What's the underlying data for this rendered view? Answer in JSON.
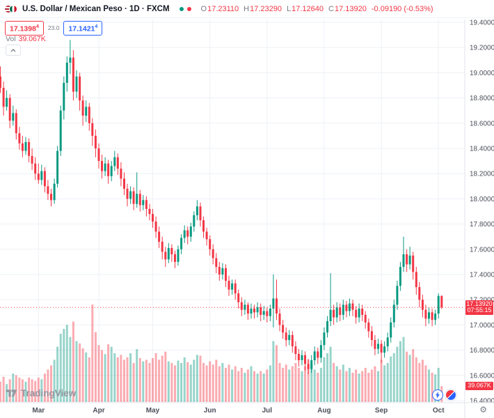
{
  "header": {
    "symbol_title": "U.S. Dollar / Mexican Peso · 1D · FXCM",
    "ohlc": {
      "o_label": "O",
      "o_value": "17.23110",
      "h_label": "H",
      "h_value": "17.23290",
      "l_label": "L",
      "l_value": "17.12640",
      "c_label": "C",
      "c_value": "17.13920",
      "change": "-0.09190 (-0.53%)"
    }
  },
  "legend": {
    "bid_main": "17.1398",
    "bid_sup": "4",
    "spread": "23.0",
    "ask_main": "17.1421",
    "ask_sup": "4",
    "vol_label": "Vol",
    "vol_value": "39.067K"
  },
  "price_label": {
    "price": "17.13920",
    "countdown": "07:55:15"
  },
  "volume_label": "39.067K",
  "watermark": "TradingView",
  "axis_gear_icon": "⚙",
  "colors": {
    "up": "#089981",
    "down": "#f23645",
    "accent_blue": "#2962ff",
    "grid": "#eef1f6",
    "axis_text": "#4a4e59"
  },
  "chart_data": {
    "type": "candlestick+volume",
    "title": "U.S. Dollar / Mexican Peso",
    "timeframe": "1D",
    "exchange": "FXCM",
    "legend_values": {
      "open": 17.2311,
      "high": 17.2329,
      "low": 17.1264,
      "close": 17.1392,
      "change": -0.0919,
      "change_pct": -0.53,
      "bid": 17.13984,
      "ask": 17.14214,
      "spread": 23.0,
      "volume": "39.067K"
    },
    "y_axis": {
      "min": 16.4,
      "max": 19.4,
      "tick_step": 0.2,
      "format_decimals": 5
    },
    "x_axis_months": [
      {
        "label": "Mar",
        "i": 12
      },
      {
        "label": "Apr",
        "i": 31
      },
      {
        "label": "May",
        "i": 48
      },
      {
        "label": "Jun",
        "i": 66
      },
      {
        "label": "Jul",
        "i": 84
      },
      {
        "label": "Aug",
        "i": 102
      },
      {
        "label": "Sep",
        "i": 120
      },
      {
        "label": "Oct",
        "i": 138
      }
    ],
    "last_price": 17.1392,
    "grid": true,
    "candles_format": [
      "open",
      "high",
      "low",
      "close",
      "volume_k"
    ],
    "candles": [
      [
        18.97,
        19.05,
        18.84,
        18.88,
        50
      ],
      [
        18.88,
        18.93,
        18.66,
        18.73,
        62
      ],
      [
        18.73,
        18.86,
        18.7,
        18.8,
        44
      ],
      [
        18.8,
        18.83,
        18.56,
        18.62,
        56
      ],
      [
        18.62,
        18.74,
        18.58,
        18.68,
        70
      ],
      [
        18.68,
        18.71,
        18.47,
        18.52,
        66
      ],
      [
        18.52,
        18.57,
        18.39,
        18.44,
        60
      ],
      [
        18.44,
        18.5,
        18.33,
        18.38,
        56
      ],
      [
        18.38,
        18.49,
        18.35,
        18.45,
        50
      ],
      [
        18.45,
        18.48,
        18.29,
        18.34,
        60
      ],
      [
        18.34,
        18.4,
        18.23,
        18.28,
        56
      ],
      [
        18.28,
        18.33,
        18.15,
        18.2,
        52
      ],
      [
        18.2,
        18.28,
        18.12,
        18.15,
        60
      ],
      [
        18.15,
        18.27,
        18.11,
        18.22,
        56
      ],
      [
        18.22,
        18.25,
        18.05,
        18.1,
        70
      ],
      [
        18.1,
        18.15,
        17.99,
        18.04,
        80
      ],
      [
        18.04,
        18.08,
        17.94,
        17.99,
        90
      ],
      [
        17.99,
        18.16,
        17.96,
        18.12,
        104
      ],
      [
        18.12,
        18.42,
        18.09,
        18.38,
        136
      ],
      [
        18.38,
        18.74,
        18.34,
        18.7,
        168
      ],
      [
        18.7,
        18.97,
        18.63,
        18.92,
        180
      ],
      [
        18.92,
        19.13,
        18.85,
        19.08,
        190
      ],
      [
        19.08,
        19.26,
        18.99,
        19.12,
        160
      ],
      [
        19.12,
        19.18,
        18.78,
        18.85,
        198
      ],
      [
        18.85,
        19.02,
        18.8,
        18.97,
        150
      ],
      [
        18.97,
        19.0,
        18.7,
        18.78,
        144
      ],
      [
        18.78,
        18.82,
        18.58,
        18.66,
        132
      ],
      [
        18.66,
        18.78,
        18.61,
        18.73,
        122
      ],
      [
        18.73,
        18.76,
        18.54,
        18.6,
        110
      ],
      [
        18.6,
        18.64,
        18.42,
        18.5,
        240
      ],
      [
        18.5,
        18.55,
        18.33,
        18.4,
        172
      ],
      [
        18.4,
        18.44,
        18.24,
        18.3,
        140
      ],
      [
        18.3,
        18.35,
        18.16,
        18.22,
        128
      ],
      [
        18.22,
        18.33,
        18.18,
        18.28,
        118
      ],
      [
        18.28,
        18.31,
        18.12,
        18.18,
        142
      ],
      [
        18.18,
        18.3,
        18.14,
        18.26,
        136
      ],
      [
        18.26,
        18.38,
        18.22,
        18.33,
        120
      ],
      [
        18.33,
        18.36,
        18.19,
        18.24,
        110
      ],
      [
        18.24,
        18.29,
        18.1,
        18.16,
        116
      ],
      [
        18.16,
        18.21,
        18.03,
        18.08,
        104
      ],
      [
        18.08,
        18.12,
        17.94,
        18.0,
        110
      ],
      [
        18.0,
        18.1,
        17.96,
        18.06,
        120
      ],
      [
        18.06,
        18.09,
        17.91,
        17.96,
        96
      ],
      [
        17.96,
        18.21,
        17.93,
        18.04,
        130
      ],
      [
        18.04,
        18.07,
        17.9,
        17.95,
        108
      ],
      [
        17.95,
        18.03,
        17.91,
        17.99,
        100
      ],
      [
        17.99,
        18.02,
        17.86,
        17.92,
        104
      ],
      [
        17.92,
        17.96,
        17.83,
        17.88,
        96
      ],
      [
        17.88,
        17.92,
        17.77,
        17.82,
        108
      ],
      [
        17.82,
        17.86,
        17.69,
        17.74,
        120
      ],
      [
        17.74,
        17.78,
        17.61,
        17.66,
        104
      ],
      [
        17.66,
        17.7,
        17.52,
        17.58,
        114
      ],
      [
        17.58,
        17.62,
        17.46,
        17.52,
        124
      ],
      [
        17.52,
        17.65,
        17.49,
        17.61,
        100
      ],
      [
        17.61,
        17.64,
        17.5,
        17.56,
        96
      ],
      [
        17.56,
        17.59,
        17.45,
        17.5,
        90
      ],
      [
        17.5,
        17.63,
        17.47,
        17.6,
        102
      ],
      [
        17.6,
        17.72,
        17.56,
        17.69,
        96
      ],
      [
        17.69,
        17.79,
        17.65,
        17.75,
        110
      ],
      [
        17.75,
        17.78,
        17.64,
        17.7,
        98
      ],
      [
        17.7,
        17.81,
        17.66,
        17.78,
        92
      ],
      [
        17.78,
        17.9,
        17.74,
        17.87,
        104
      ],
      [
        17.87,
        17.99,
        17.83,
        17.94,
        116
      ],
      [
        17.94,
        17.97,
        17.78,
        17.83,
        114
      ],
      [
        17.83,
        17.86,
        17.69,
        17.74,
        96
      ],
      [
        17.74,
        17.77,
        17.63,
        17.68,
        90
      ],
      [
        17.68,
        17.71,
        17.55,
        17.6,
        100
      ],
      [
        17.6,
        17.64,
        17.48,
        17.53,
        92
      ],
      [
        17.53,
        17.57,
        17.41,
        17.46,
        104
      ],
      [
        17.46,
        17.5,
        17.35,
        17.4,
        88
      ],
      [
        17.4,
        17.49,
        17.36,
        17.45,
        96
      ],
      [
        17.45,
        17.48,
        17.3,
        17.35,
        84
      ],
      [
        17.35,
        17.39,
        17.23,
        17.28,
        92
      ],
      [
        17.28,
        17.36,
        17.24,
        17.33,
        80
      ],
      [
        17.33,
        17.36,
        17.2,
        17.25,
        88
      ],
      [
        17.25,
        17.28,
        17.13,
        17.18,
        76
      ],
      [
        17.18,
        17.22,
        17.07,
        17.12,
        84
      ],
      [
        17.12,
        17.2,
        17.08,
        17.16,
        72
      ],
      [
        17.16,
        17.18,
        17.04,
        17.09,
        80
      ],
      [
        17.09,
        17.17,
        17.05,
        17.13,
        88
      ],
      [
        17.13,
        17.16,
        17.05,
        17.1,
        76
      ],
      [
        17.1,
        17.18,
        17.06,
        17.14,
        70
      ],
      [
        17.14,
        17.17,
        17.03,
        17.08,
        76
      ],
      [
        17.08,
        17.15,
        17.04,
        17.11,
        70
      ],
      [
        17.11,
        17.14,
        17.02,
        17.07,
        80
      ],
      [
        17.07,
        17.16,
        17.03,
        17.13,
        90
      ],
      [
        17.13,
        17.4,
        16.98,
        17.21,
        150
      ],
      [
        17.21,
        17.36,
        17.04,
        17.09,
        140
      ],
      [
        17.09,
        17.13,
        16.95,
        17.0,
        96
      ],
      [
        17.0,
        17.04,
        16.89,
        16.94,
        84
      ],
      [
        16.94,
        16.98,
        16.83,
        16.88,
        92
      ],
      [
        16.88,
        16.96,
        16.84,
        16.92,
        80
      ],
      [
        16.92,
        16.95,
        16.78,
        16.83,
        88
      ],
      [
        16.83,
        16.87,
        16.72,
        16.77,
        96
      ],
      [
        16.77,
        16.81,
        16.67,
        16.72,
        84
      ],
      [
        16.72,
        16.8,
        16.68,
        16.76,
        76
      ],
      [
        16.76,
        16.79,
        16.64,
        16.69,
        88
      ],
      [
        16.69,
        16.73,
        16.61,
        16.65,
        104
      ],
      [
        16.65,
        16.76,
        16.62,
        16.72,
        92
      ],
      [
        16.72,
        16.83,
        16.68,
        16.79,
        80
      ],
      [
        16.79,
        16.82,
        16.69,
        16.74,
        72
      ],
      [
        16.74,
        16.88,
        16.7,
        16.84,
        84
      ],
      [
        16.84,
        16.98,
        16.8,
        16.94,
        110
      ],
      [
        16.94,
        17.07,
        16.9,
        17.03,
        120
      ],
      [
        17.03,
        17.41,
        16.99,
        17.12,
        136
      ],
      [
        17.12,
        17.16,
        17.0,
        17.06,
        96
      ],
      [
        17.06,
        17.18,
        17.02,
        17.14,
        88
      ],
      [
        17.14,
        17.17,
        17.03,
        17.08,
        80
      ],
      [
        17.08,
        17.2,
        17.04,
        17.16,
        92
      ],
      [
        17.16,
        17.19,
        17.06,
        17.11,
        76
      ],
      [
        17.11,
        17.21,
        17.07,
        17.17,
        84
      ],
      [
        17.17,
        17.2,
        17.07,
        17.12,
        72
      ],
      [
        17.12,
        17.15,
        17.01,
        17.06,
        80
      ],
      [
        17.06,
        17.17,
        17.02,
        17.13,
        70
      ],
      [
        17.13,
        17.16,
        17.03,
        17.08,
        76
      ],
      [
        17.08,
        17.11,
        16.97,
        17.02,
        84
      ],
      [
        17.02,
        17.05,
        16.9,
        16.95,
        72
      ],
      [
        16.95,
        16.99,
        16.83,
        16.88,
        80
      ],
      [
        16.88,
        16.92,
        16.76,
        16.81,
        88
      ],
      [
        16.81,
        16.89,
        16.77,
        16.85,
        76
      ],
      [
        16.85,
        16.88,
        16.7,
        16.78,
        104
      ],
      [
        16.78,
        16.87,
        16.74,
        16.83,
        90
      ],
      [
        16.83,
        16.94,
        16.79,
        16.9,
        96
      ],
      [
        16.9,
        17.06,
        16.86,
        17.02,
        112
      ],
      [
        17.02,
        17.2,
        16.98,
        17.16,
        120
      ],
      [
        17.16,
        17.35,
        17.12,
        17.31,
        136
      ],
      [
        17.31,
        17.5,
        17.27,
        17.46,
        150
      ],
      [
        17.46,
        17.7,
        17.42,
        17.56,
        160
      ],
      [
        17.56,
        17.6,
        17.42,
        17.48,
        124
      ],
      [
        17.48,
        17.62,
        17.44,
        17.55,
        116
      ],
      [
        17.55,
        17.58,
        17.36,
        17.42,
        130
      ],
      [
        17.42,
        17.46,
        17.24,
        17.3,
        110
      ],
      [
        17.3,
        17.34,
        17.14,
        17.2,
        96
      ],
      [
        17.2,
        17.24,
        17.06,
        17.12,
        104
      ],
      [
        17.12,
        17.16,
        16.99,
        17.05,
        90
      ],
      [
        17.05,
        17.14,
        17.01,
        17.1,
        80
      ],
      [
        17.1,
        17.13,
        16.99,
        17.04,
        72
      ],
      [
        17.04,
        17.12,
        17.0,
        17.09,
        68
      ],
      [
        17.09,
        17.25,
        17.05,
        17.23,
        84
      ],
      [
        17.2311,
        17.2329,
        17.1264,
        17.1392,
        39.067
      ]
    ]
  }
}
